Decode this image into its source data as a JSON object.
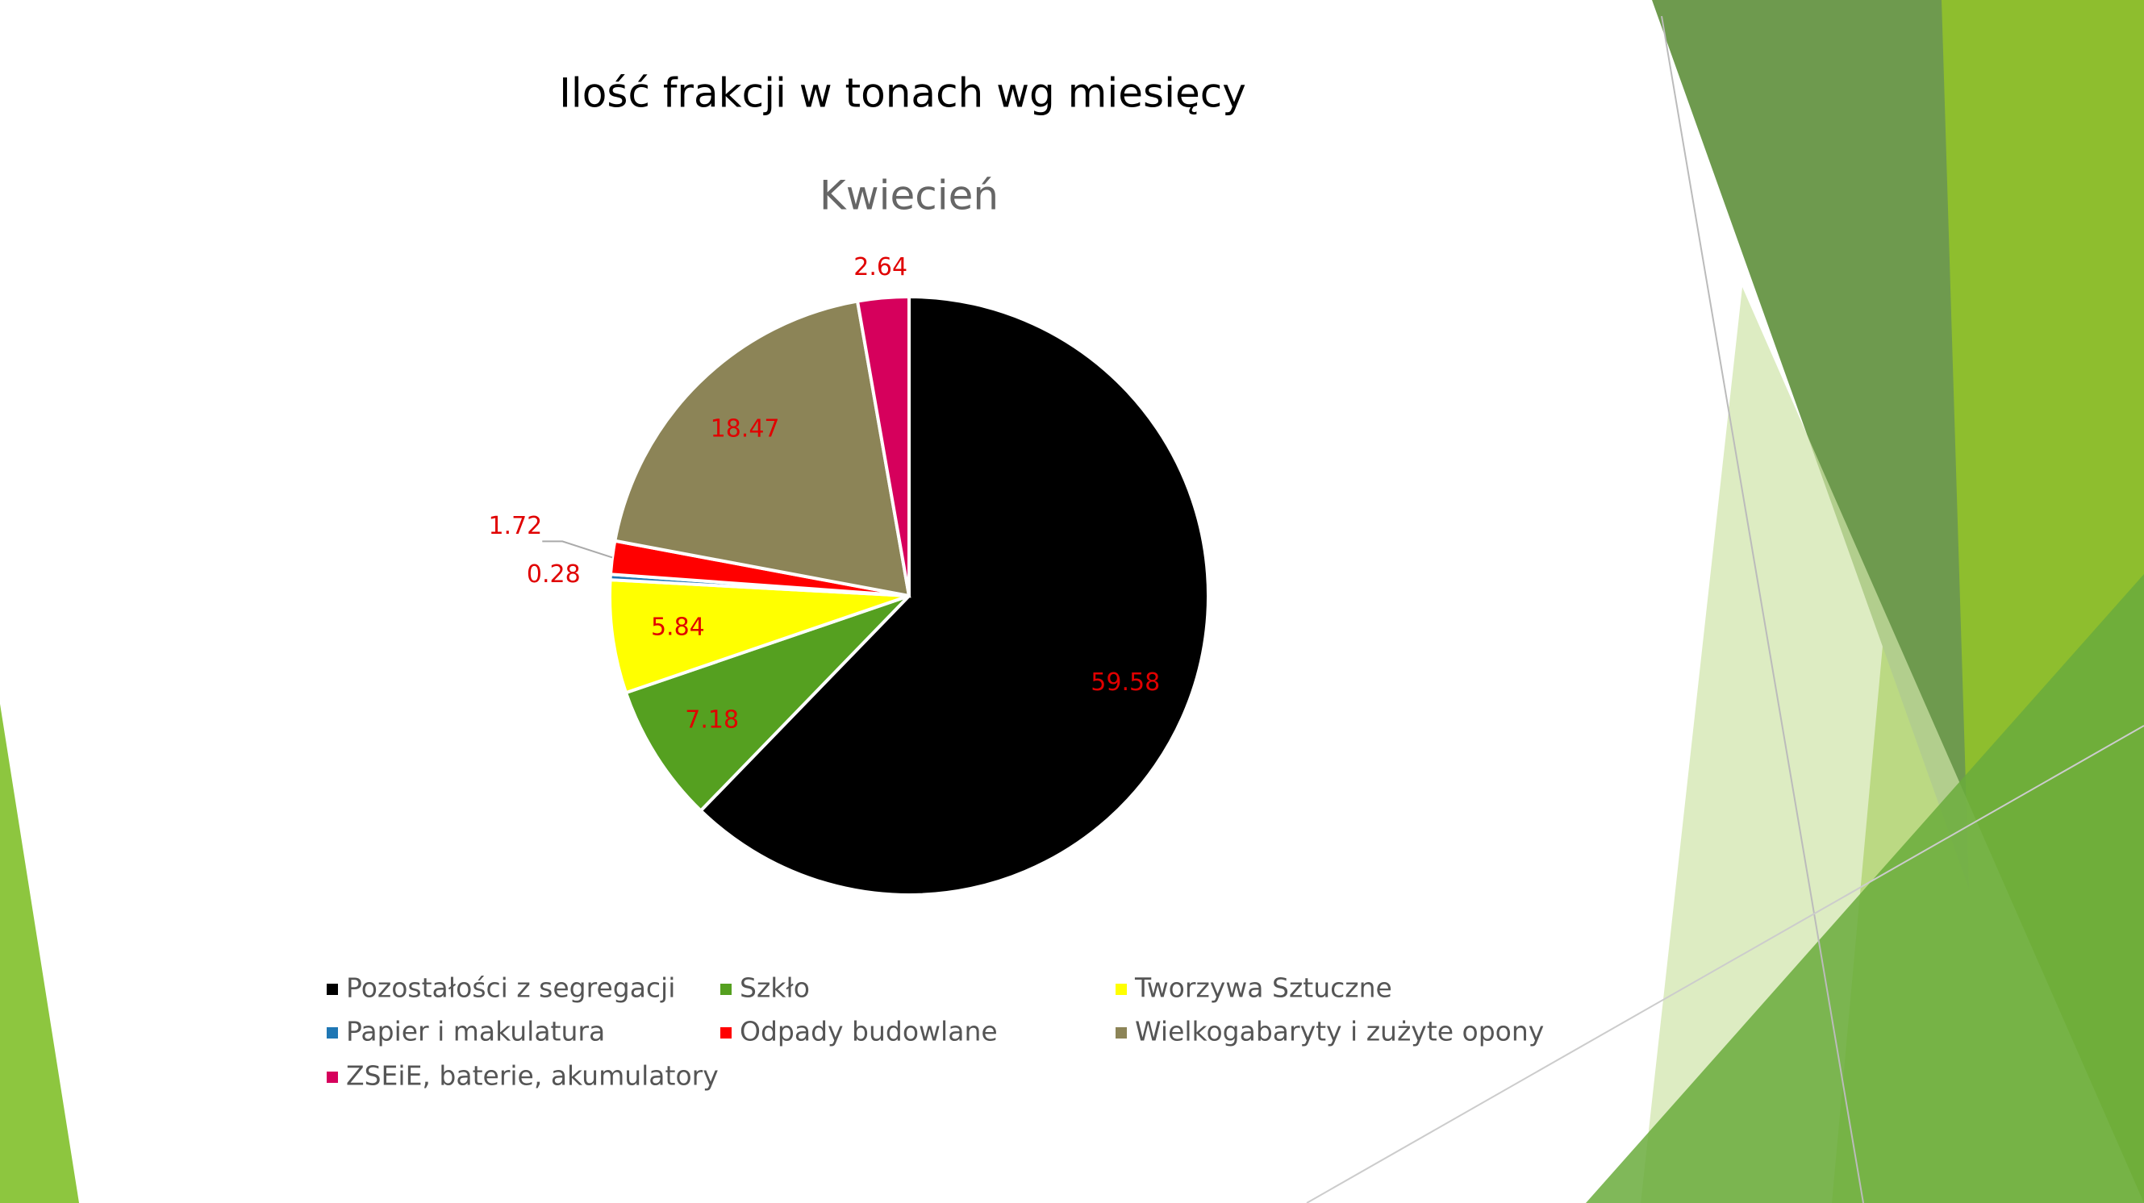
{
  "chart_data": {
    "type": "pie",
    "title": "Ilość frakcji w tonach wg miesięcy",
    "subtitle": "Kwiecień",
    "categories": [
      "Pozostałości z segregacji",
      "Szkło",
      "Tworzywa Sztuczne",
      "Papier i makulatura",
      "Odpady budowlane",
      "Wielkogabaryty i zużyte opony",
      "ZSEiE, baterie, akumulatory"
    ],
    "values": [
      59.58,
      7.18,
      5.84,
      0.28,
      1.72,
      18.47,
      2.64
    ],
    "colors": [
      "#000000",
      "#55a020",
      "#ffff00",
      "#1f77b4",
      "#ff0000",
      "#8c8457",
      "#d6005c"
    ],
    "legend": "bottom"
  }
}
